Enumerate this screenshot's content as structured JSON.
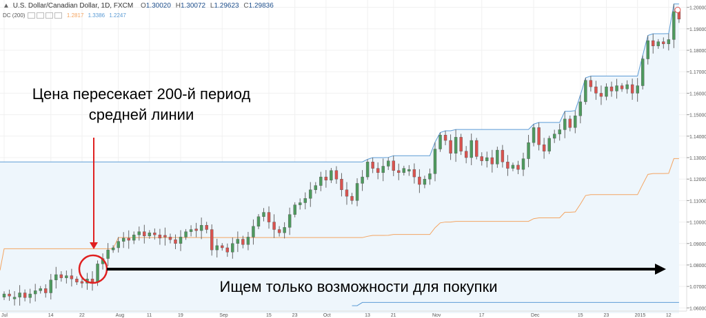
{
  "header": {
    "symbol": "U.S. Dollar/Canadian Dollar, 1D, FXCM",
    "ohlc": [
      {
        "label": "O",
        "value": "1.30020"
      },
      {
        "label": "H",
        "value": "1.30072"
      },
      {
        "label": "L",
        "value": "1.29623"
      },
      {
        "label": "C",
        "value": "1.29836"
      }
    ],
    "indicator": {
      "name": "DC (200)",
      "values": [
        {
          "value": "1.2817",
          "color": "#f4a460"
        },
        {
          "value": "1.3386",
          "color": "#5b9bd5"
        },
        {
          "value": "1.2247",
          "color": "#5b9bd5"
        }
      ]
    }
  },
  "annotations": {
    "cross_text_line1": "Цена пересекает 200-й период",
    "cross_text_line2": "средней линии",
    "buy_text": "Ищем только возможности для покупки"
  },
  "colors": {
    "up": "#4e9a5e",
    "down": "#d9534f",
    "upper_band": "#5b9bd5",
    "middle_band": "#f4a460",
    "fill": "#eef6fc",
    "annotation_red": "#e02020"
  },
  "chart_data": {
    "type": "candlestick",
    "y_ticks": [
      "1.20000",
      "1.19000",
      "1.18000",
      "1.17000",
      "1.16000",
      "1.15000",
      "1.14000",
      "1.13000",
      "1.12000",
      "1.11000",
      "1.10000",
      "1.09000",
      "1.08000",
      "1.07000",
      "1.06000"
    ],
    "ylim": [
      1.0585,
      1.2015
    ],
    "x_ticks": [
      {
        "i": 0,
        "label": "Jul"
      },
      {
        "i": 9,
        "label": "14"
      },
      {
        "i": 15,
        "label": "22"
      },
      {
        "i": 22,
        "label": "Aug"
      },
      {
        "i": 28,
        "label": "11"
      },
      {
        "i": 34,
        "label": "19"
      },
      {
        "i": 42,
        "label": "Sep"
      },
      {
        "i": 51,
        "label": "15"
      },
      {
        "i": 56,
        "label": "23"
      },
      {
        "i": 62,
        "label": "Oct"
      },
      {
        "i": 70,
        "label": "13"
      },
      {
        "i": 75,
        "label": "21"
      },
      {
        "i": 83,
        "label": "Nov"
      },
      {
        "i": 92,
        "label": "17"
      },
      {
        "i": 102,
        "label": "Dec"
      },
      {
        "i": 111,
        "label": "15"
      },
      {
        "i": 116,
        "label": "23"
      },
      {
        "i": 122,
        "label": "2015"
      },
      {
        "i": 128,
        "label": "12"
      }
    ],
    "closes": [
      1.0665,
      1.0655,
      1.065,
      1.067,
      1.0648,
      1.0665,
      1.068,
      1.069,
      1.067,
      1.073,
      1.0755,
      1.074,
      1.075,
      1.0735,
      1.072,
      1.0715,
      1.0735,
      1.072,
      1.0805,
      1.083,
      1.087,
      1.088,
      1.091,
      1.0925,
      1.0915,
      1.094,
      1.0955,
      1.0935,
      1.095,
      1.094,
      1.0925,
      1.093,
      1.0918,
      1.09,
      1.093,
      1.0955,
      1.0965,
      1.096,
      1.0985,
      1.0965,
      1.087,
      1.089,
      1.088,
      1.086,
      1.09,
      1.092,
      1.0895,
      1.093,
      1.098,
      1.1025,
      1.1045,
      1.1,
      1.0965,
      1.095,
      1.0975,
      1.1035,
      1.108,
      1.109,
      1.111,
      1.115,
      1.117,
      1.121,
      1.1195,
      1.124,
      1.12,
      1.115,
      1.112,
      1.11,
      1.118,
      1.121,
      1.128,
      1.125,
      1.123,
      1.126,
      1.1285,
      1.124,
      1.123,
      1.125,
      1.1245,
      1.121,
      1.1175,
      1.12,
      1.1225,
      1.134,
      1.1405,
      1.138,
      1.132,
      1.1395,
      1.133,
      1.13,
      1.138,
      1.1305,
      1.1285,
      1.13,
      1.127,
      1.1335,
      1.128,
      1.125,
      1.1265,
      1.1245,
      1.1295,
      1.137,
      1.144,
      1.136,
      1.133,
      1.139,
      1.141,
      1.143,
      1.148,
      1.144,
      1.1495,
      1.156,
      1.166,
      1.163,
      1.16,
      1.1585,
      1.163,
      1.161,
      1.1635,
      1.162,
      1.164,
      1.16,
      1.1635,
      1.176,
      1.1845,
      1.182,
      1.184,
      1.183,
      1.185,
      1.198,
      1.1945
    ]
  }
}
